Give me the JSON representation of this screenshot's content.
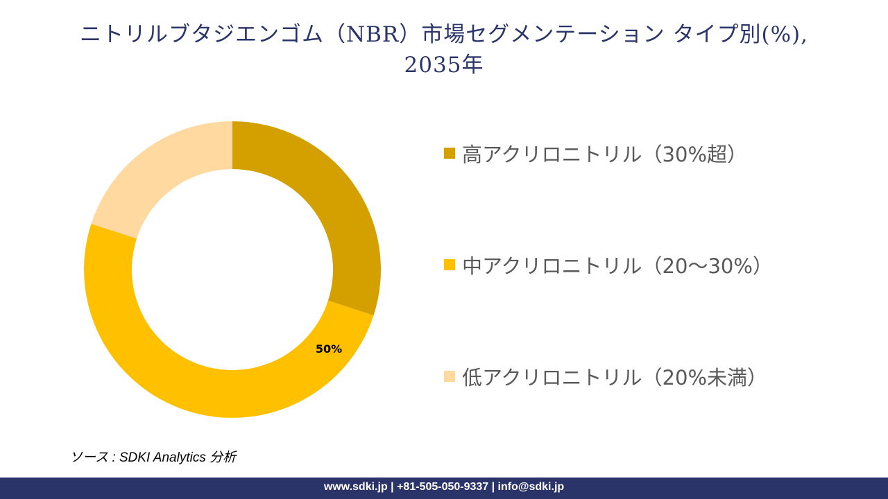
{
  "title": {
    "line1": "ニトリルブタジエンゴム（NBR）市場セグメンテーション タイプ別(%),",
    "line2": "2035年"
  },
  "chart_data": {
    "type": "pie",
    "subtype": "donut",
    "title": "ニトリルブタジエンゴム（NBR）市場セグメンテーション タイプ別(%), 2035年",
    "categories": [
      "高アクリロニトリル（30%超）",
      "中アクリロニトリル（20～30%）",
      "低アクリロニトリル（20%未満）"
    ],
    "values": [
      30,
      50,
      20
    ],
    "colors": [
      "#d4a000",
      "#ffc000",
      "#ffd9a0"
    ],
    "data_labels": [
      "",
      "50%",
      ""
    ],
    "legend_position": "right"
  },
  "legend": {
    "items": [
      {
        "label": "高アクリロニトリル（30%超）",
        "color": "#d4a000"
      },
      {
        "label": "中アクリロニトリル（20～30%）",
        "color": "#ffc000"
      },
      {
        "label": "低アクリロニトリル（20%未満）",
        "color": "#ffd9a0"
      }
    ]
  },
  "source": "ソース : SDKI Analytics  分析",
  "footer": {
    "text": "www.sdki.jp | +81-505-050-9337 | info@sdki.jp",
    "color": "#2a3468"
  }
}
